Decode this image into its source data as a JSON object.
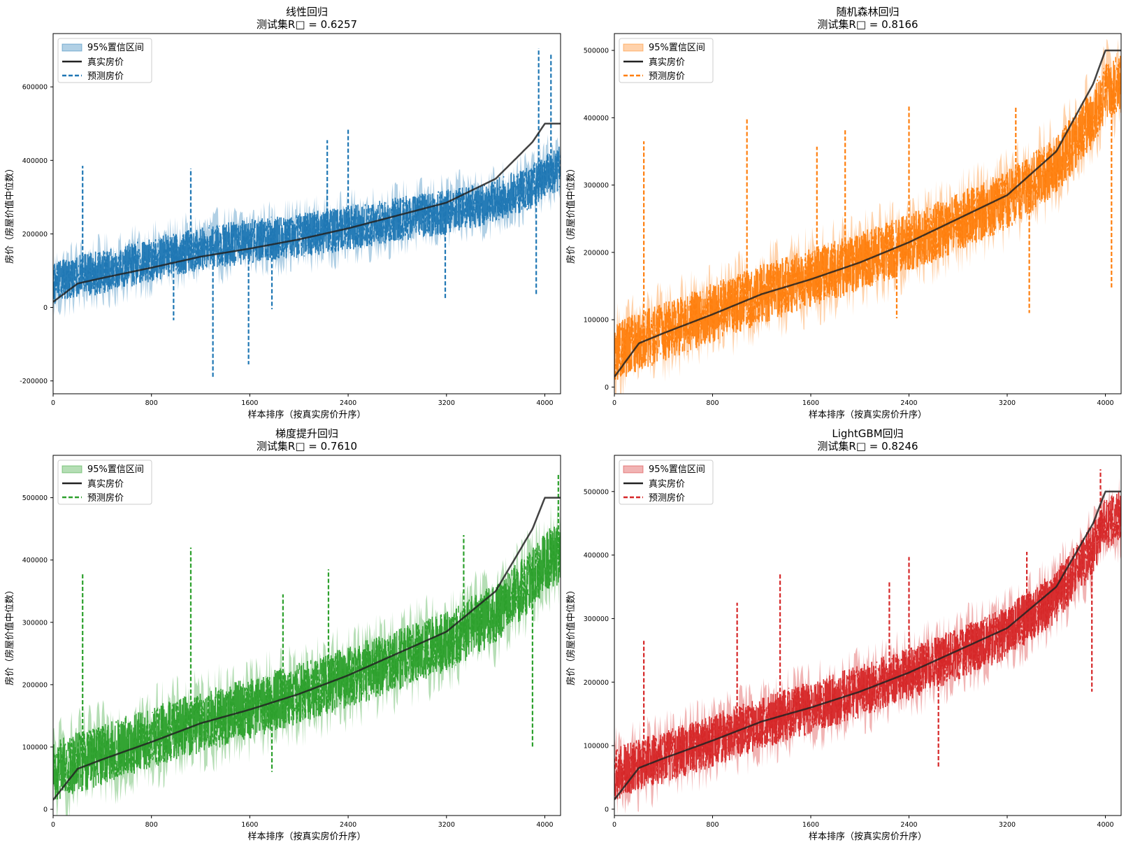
{
  "chart_data": [
    {
      "type": "line",
      "title": "线性回归",
      "subtitle": "测试集R□ = 0.6257",
      "xlabel": "样本排序（按真实房价升序）",
      "ylabel": "房价（房屋价值中位数）",
      "xlim": [
        0,
        4128
      ],
      "ylim": [
        -235000,
        745000
      ],
      "xticks": [
        0,
        800,
        1600,
        2400,
        3200,
        4000
      ],
      "xtick_labels": [
        "0",
        "800",
        "1600",
        "2400",
        "3200",
        "4000"
      ],
      "yticks": [
        -200000,
        0,
        200000,
        400000,
        600000
      ],
      "ytick_labels": [
        "-200000",
        "0",
        "200000",
        "400000",
        "600000"
      ],
      "color": "#1f77b4",
      "r2": 0.6257,
      "legend": [
        "95%置信区间",
        "真实房价",
        "预测房价"
      ],
      "legend_position": "upper-left",
      "x": [
        0,
        200,
        400,
        800,
        1200,
        1600,
        2000,
        2400,
        2800,
        3200,
        3600,
        3900,
        4000,
        4128
      ],
      "true_values": [
        15000,
        65000,
        80000,
        108000,
        138000,
        160000,
        185000,
        215000,
        250000,
        285000,
        350000,
        450000,
        500001,
        500001
      ],
      "predicted_values": [
        60000,
        85000,
        95000,
        130000,
        160000,
        180000,
        195000,
        215000,
        240000,
        260000,
        290000,
        330000,
        360000,
        380000
      ],
      "spread": 55000,
      "spikes": [
        {
          "x": 240,
          "value": 385000
        },
        {
          "x": 1120,
          "value": 378000
        },
        {
          "x": 1300,
          "value": -193000
        },
        {
          "x": 1590,
          "value": -155000
        },
        {
          "x": 2230,
          "value": 455000
        },
        {
          "x": 2400,
          "value": 488000
        },
        {
          "x": 980,
          "value": -35000
        },
        {
          "x": 1780,
          "value": -5000
        },
        {
          "x": 3190,
          "value": 20000
        },
        {
          "x": 3950,
          "value": 705000
        },
        {
          "x": 4050,
          "value": 690000
        },
        {
          "x": 3930,
          "value": 35000
        }
      ]
    },
    {
      "type": "line",
      "title": "随机森林回归",
      "subtitle": "测试集R□ = 0.8166",
      "xlabel": "样本排序（按真实房价升序）",
      "ylabel": "房价（房屋价值中位数）",
      "xlim": [
        0,
        4128
      ],
      "ylim": [
        -10000,
        525000
      ],
      "xticks": [
        0,
        800,
        1600,
        2400,
        3200,
        4000
      ],
      "xtick_labels": [
        "0",
        "800",
        "1600",
        "2400",
        "3200",
        "4000"
      ],
      "yticks": [
        0,
        100000,
        200000,
        300000,
        400000,
        500000
      ],
      "ytick_labels": [
        "0",
        "100000",
        "200000",
        "300000",
        "400000",
        "500000"
      ],
      "color": "#ff7f0e",
      "r2": 0.8166,
      "legend": [
        "95%置信区间",
        "真实房价",
        "预测房价"
      ],
      "legend_position": "upper-left",
      "x": [
        0,
        200,
        400,
        800,
        1200,
        1600,
        2000,
        2400,
        2800,
        3200,
        3600,
        3900,
        4000,
        4128
      ],
      "true_values": [
        15000,
        65000,
        80000,
        108000,
        138000,
        160000,
        185000,
        215000,
        250000,
        285000,
        350000,
        450000,
        500001,
        500001
      ],
      "predicted_values": [
        50000,
        68000,
        82000,
        110000,
        138000,
        162000,
        186000,
        214000,
        245000,
        278000,
        330000,
        400000,
        440000,
        450000
      ],
      "spread": 40000,
      "spikes": [
        {
          "x": 240,
          "value": 365000
        },
        {
          "x": 1080,
          "value": 398000
        },
        {
          "x": 1650,
          "value": 357000
        },
        {
          "x": 2400,
          "value": 417000
        },
        {
          "x": 3270,
          "value": 418000
        },
        {
          "x": 3380,
          "value": 110000
        },
        {
          "x": 2300,
          "value": 102000
        },
        {
          "x": 4050,
          "value": 145000
        },
        {
          "x": 1880,
          "value": 382000
        }
      ]
    },
    {
      "type": "line",
      "title": "梯度提升回归",
      "subtitle": "测试集R□ = 0.7610",
      "xlabel": "样本排序（按真实房价升序）",
      "ylabel": "房价（房屋价值中位数）",
      "xlim": [
        0,
        4128
      ],
      "ylim": [
        -10000,
        568000
      ],
      "xticks": [
        0,
        800,
        1600,
        2400,
        3200,
        4000
      ],
      "xtick_labels": [
        "0",
        "800",
        "1600",
        "2400",
        "3200",
        "4000"
      ],
      "yticks": [
        0,
        100000,
        200000,
        300000,
        400000,
        500000
      ],
      "ytick_labels": [
        "0",
        "100000",
        "200000",
        "300000",
        "400000",
        "500000"
      ],
      "color": "#2ca02c",
      "r2": 0.761,
      "legend": [
        "95%置信区间",
        "真实房价",
        "预测房价"
      ],
      "legend_position": "upper-left",
      "x": [
        0,
        200,
        400,
        800,
        1200,
        1600,
        2000,
        2400,
        2800,
        3200,
        3600,
        3900,
        4000,
        4128
      ],
      "true_values": [
        15000,
        65000,
        80000,
        108000,
        138000,
        160000,
        185000,
        215000,
        250000,
        285000,
        350000,
        450000,
        500001,
        500001
      ],
      "predicted_values": [
        60000,
        75000,
        88000,
        115000,
        140000,
        162000,
        186000,
        212000,
        240000,
        270000,
        315000,
        370000,
        400000,
        410000
      ],
      "spread": 45000,
      "spikes": [
        {
          "x": 240,
          "value": 377000
        },
        {
          "x": 1120,
          "value": 420000
        },
        {
          "x": 2240,
          "value": 385000
        },
        {
          "x": 3340,
          "value": 440000
        },
        {
          "x": 1780,
          "value": 60000
        },
        {
          "x": 3900,
          "value": 100000
        },
        {
          "x": 4110,
          "value": 540000
        },
        {
          "x": 1870,
          "value": 345000
        }
      ]
    },
    {
      "type": "line",
      "title": "LightGBM回归",
      "subtitle": "测试集R□ = 0.8246",
      "xlabel": "样本排序（按真实房价升序）",
      "ylabel": "房价（房屋价值中位数）",
      "xlim": [
        0,
        4128
      ],
      "ylim": [
        -10000,
        557000
      ],
      "xticks": [
        0,
        800,
        1600,
        2400,
        3200,
        4000
      ],
      "xtick_labels": [
        "0",
        "800",
        "1600",
        "2400",
        "3200",
        "4000"
      ],
      "yticks": [
        0,
        100000,
        200000,
        300000,
        400000,
        500000
      ],
      "ytick_labels": [
        "0",
        "100000",
        "200000",
        "300000",
        "400000",
        "500000"
      ],
      "color": "#d62728",
      "r2": 0.8246,
      "legend": [
        "95%置信区间",
        "真实房价",
        "预测房价"
      ],
      "legend_position": "upper-left",
      "x": [
        0,
        200,
        400,
        800,
        1200,
        1600,
        2000,
        2400,
        2800,
        3200,
        3600,
        3900,
        4000,
        4128
      ],
      "true_values": [
        15000,
        65000,
        80000,
        108000,
        138000,
        160000,
        185000,
        215000,
        250000,
        285000,
        350000,
        450000,
        500001,
        500001
      ],
      "predicted_values": [
        55000,
        68000,
        82000,
        108000,
        136000,
        160000,
        185000,
        213000,
        245000,
        278000,
        335000,
        410000,
        450000,
        460000
      ],
      "spread": 38000,
      "spikes": [
        {
          "x": 1000,
          "value": 325000
        },
        {
          "x": 2240,
          "value": 360000
        },
        {
          "x": 2400,
          "value": 397000
        },
        {
          "x": 3360,
          "value": 405000
        },
        {
          "x": 1350,
          "value": 370000
        },
        {
          "x": 2640,
          "value": 65000
        },
        {
          "x": 3890,
          "value": 185000
        },
        {
          "x": 3960,
          "value": 535000
        },
        {
          "x": 240,
          "value": 265000
        }
      ]
    }
  ]
}
